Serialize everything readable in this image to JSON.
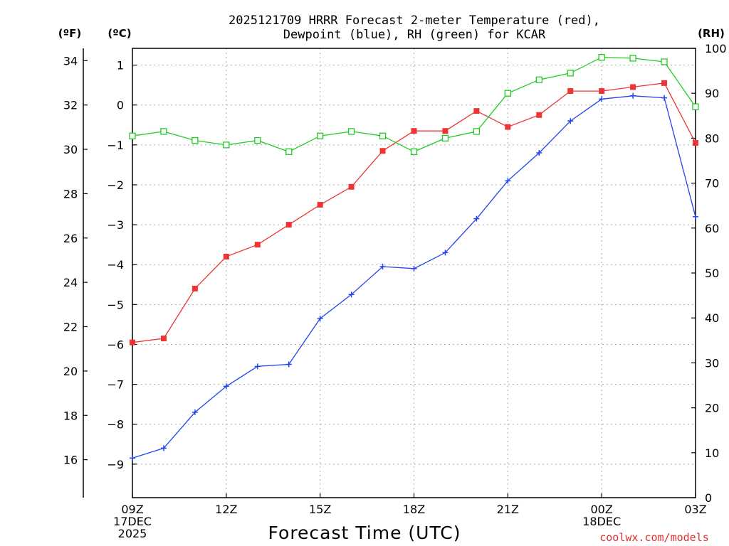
{
  "chart_data": {
    "type": "line",
    "title_line1": "2025121709 HRRR Forecast 2-meter Temperature (red),",
    "title_line2": "Dewpoint (blue), RH (green) for KCAR",
    "xlabel": "Forecast Time (UTC)",
    "credit": "coolwx.com/models",
    "unit_f": "(ºF)",
    "unit_c": "(ºC)",
    "unit_rh": "(RH)",
    "x_hours": [
      0,
      1,
      2,
      3,
      4,
      5,
      6,
      7,
      8,
      9,
      10,
      11,
      12,
      13,
      14,
      15,
      16,
      17,
      18
    ],
    "xlim": [
      0,
      18
    ],
    "x_ticks": [
      {
        "h": 0,
        "lines": [
          "09Z",
          "17DEC",
          "2025"
        ]
      },
      {
        "h": 3,
        "lines": [
          "12Z"
        ]
      },
      {
        "h": 6,
        "lines": [
          "15Z"
        ]
      },
      {
        "h": 9,
        "lines": [
          "18Z"
        ]
      },
      {
        "h": 12,
        "lines": [
          "21Z"
        ]
      },
      {
        "h": 15,
        "lines": [
          "00Z",
          "18DEC"
        ]
      },
      {
        "h": 18,
        "lines": [
          "03Z"
        ]
      }
    ],
    "celsius_axis": {
      "ylim": [
        -9.84,
        1.42
      ],
      "ticks": [
        1,
        0,
        -1,
        -2,
        -3,
        -4,
        -5,
        -6,
        -7,
        -8,
        -9
      ],
      "tick_labels": [
        "1",
        "0",
        "−1",
        "−2",
        "−3",
        "−4",
        "−5",
        "−6",
        "−7",
        "−8",
        "−9"
      ]
    },
    "fahrenheit_axis": {
      "ticks": [
        34,
        32,
        30,
        28,
        26,
        24,
        22,
        20,
        18,
        16
      ],
      "tick_labels": [
        "34",
        "32",
        "30",
        "28",
        "26",
        "24",
        "22",
        "20",
        "18",
        "16"
      ]
    },
    "rh_axis": {
      "ylim": [
        0,
        100
      ],
      "ticks": [
        100,
        90,
        80,
        70,
        60,
        50,
        40,
        30,
        20,
        10,
        0
      ],
      "tick_labels": [
        "100",
        "90",
        "80",
        "70",
        "60",
        "50",
        "40",
        "30",
        "20",
        "10",
        "0"
      ]
    },
    "series": [
      {
        "name": "Temperature",
        "unit": "C",
        "color": "#ee3333",
        "marker": "filled-square",
        "values": [
          -5.95,
          -5.85,
          -4.6,
          -3.8,
          -3.5,
          -3.0,
          -2.5,
          -2.05,
          -1.15,
          -0.65,
          -0.65,
          -0.15,
          -0.55,
          -0.25,
          0.35,
          0.35,
          0.45,
          0.55,
          -0.95
        ]
      },
      {
        "name": "Dewpoint",
        "unit": "C",
        "color": "#2244ee",
        "marker": "plus",
        "values": [
          -8.85,
          -8.6,
          -7.7,
          -7.05,
          -6.55,
          -6.5,
          -5.35,
          -4.75,
          -4.05,
          -4.1,
          -3.7,
          -2.85,
          -1.9,
          -1.2,
          -0.4,
          0.15,
          0.23,
          0.18,
          -2.8
        ]
      },
      {
        "name": "RH",
        "unit": "%",
        "color": "#22cc22",
        "marker": "open-square",
        "values": [
          80.5,
          81.5,
          79.5,
          78.5,
          79.5,
          77.0,
          80.5,
          81.5,
          80.5,
          77.0,
          80.0,
          81.5,
          90.0,
          93.0,
          94.5,
          98.0,
          97.8,
          97.0,
          87.0
        ]
      }
    ]
  }
}
